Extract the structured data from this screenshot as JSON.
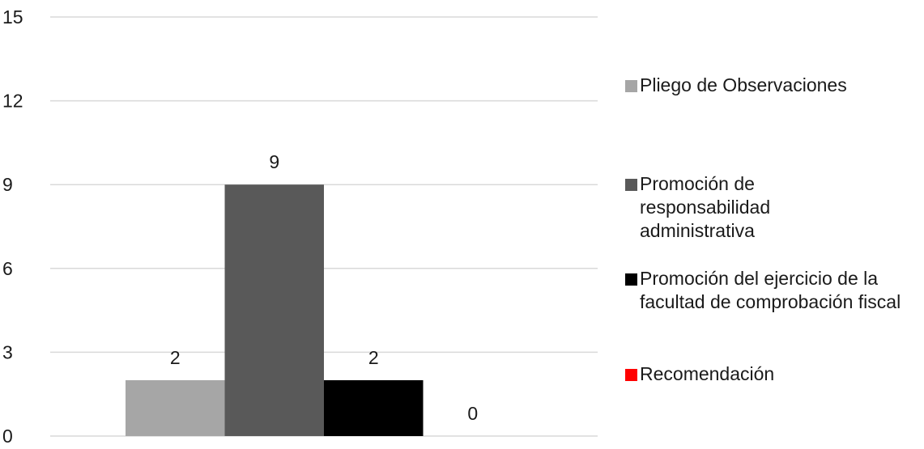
{
  "chart_data": {
    "type": "bar",
    "title": "",
    "xlabel": "",
    "ylabel": "",
    "ylim": [
      0,
      15
    ],
    "yticks": [
      0,
      3,
      6,
      9,
      12,
      15
    ],
    "grid": true,
    "legend_position": "right",
    "categories": [
      ""
    ],
    "series": [
      {
        "name": "Pliego de Observaciones",
        "values": [
          2
        ],
        "color": "#a6a6a6"
      },
      {
        "name": "Promoción de responsabilidad administrativa",
        "values": [
          9
        ],
        "color": "#595959"
      },
      {
        "name": "Promoción del ejercicio de la facultad de comprobación fiscal",
        "values": [
          2
        ],
        "color": "#000000"
      },
      {
        "name": "Recomendación",
        "values": [
          0
        ],
        "color": "#ff0000"
      }
    ],
    "data_labels": [
      "2",
      "9",
      "2",
      "0"
    ]
  }
}
